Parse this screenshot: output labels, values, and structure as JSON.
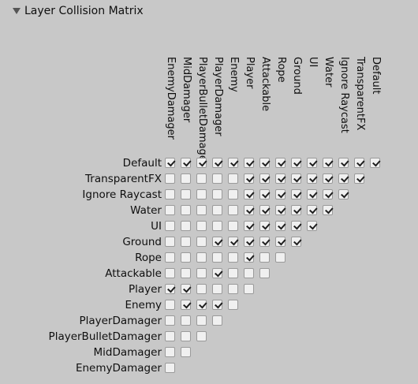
{
  "header": {
    "title": "Layer Collision Matrix",
    "foldout_icon": "triangle-down-icon"
  },
  "layers": [
    "Default",
    "TransparentFX",
    "Ignore Raycast",
    "Water",
    "UI",
    "Ground",
    "Rope",
    "Attackable",
    "Player",
    "Enemy",
    "PlayerDamager",
    "PlayerBulletDamager",
    "MidDamager",
    "EnemyDamager"
  ],
  "matrix": [
    [
      1,
      1,
      1,
      1,
      1,
      1,
      1,
      1,
      1,
      1,
      1,
      1,
      1,
      1
    ],
    [
      0,
      0,
      0,
      0,
      0,
      1,
      1,
      1,
      1,
      1,
      1,
      1,
      1
    ],
    [
      0,
      0,
      0,
      0,
      0,
      1,
      1,
      1,
      1,
      1,
      1,
      1
    ],
    [
      0,
      0,
      0,
      0,
      0,
      1,
      1,
      1,
      1,
      1,
      1
    ],
    [
      0,
      0,
      0,
      0,
      0,
      1,
      1,
      1,
      1,
      1
    ],
    [
      0,
      0,
      0,
      1,
      1,
      1,
      1,
      1,
      1
    ],
    [
      0,
      0,
      0,
      0,
      0,
      1,
      0,
      0
    ],
    [
      0,
      0,
      0,
      1,
      0,
      0,
      0
    ],
    [
      1,
      1,
      0,
      0,
      0,
      0
    ],
    [
      0,
      1,
      1,
      1,
      0
    ],
    [
      0,
      0,
      0,
      0
    ],
    [
      0,
      0,
      0
    ],
    [
      0,
      0
    ],
    [
      0
    ]
  ],
  "colors": {
    "background": "#c8c8c8",
    "checkbox_fill": "#f0f0f0",
    "checkbox_border": "#9a9a9a",
    "text": "#0f0f0f"
  }
}
